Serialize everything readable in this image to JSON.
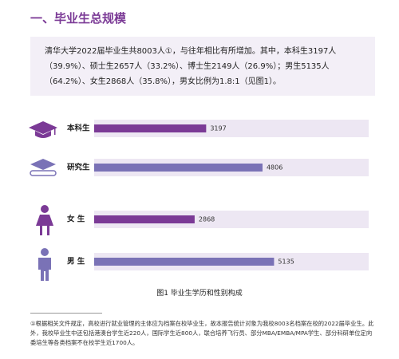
{
  "heading": "一、毕业生总规模",
  "paragraph": "清华大学2022届毕业生共8003人①，与往年相比有所增加。其中，本科生3197人（39.9%）、硕士生2657人（33.2%）、博士生2149人（26.9%）；男生5135人（64.2%）、女生2868人（35.8%），男女比例为1.8:1（见图1）。",
  "chart_data": {
    "type": "bar",
    "orientation": "horizontal",
    "categories": [
      "本科生",
      "研究生",
      "女 生",
      "男 生"
    ],
    "values": [
      3197,
      4806,
      2868,
      5135
    ],
    "colors": [
      "#7b3a96",
      "#7a72b6",
      "#7b3a96",
      "#7a72b6"
    ],
    "track_color": "#ede7f3"
  },
  "caption": "图1  毕业生学历和性别构成",
  "footnote": "①根据相关文件规定，高校进行就业管理的主体应为档案在校毕业生，故本报告统计对象为我校8003名档案在校的2022届毕业生。此外，我校毕业生中还包括港澳台学生近220人，国际学生近800人，联合培养飞行员、部分MBA/EMBA/MPA学生、部分科研单位定向委培生等各类档案不在校学生近1700人。"
}
